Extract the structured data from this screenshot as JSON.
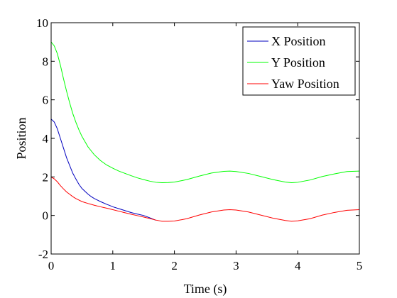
{
  "chart_data": {
    "type": "line",
    "title": "",
    "xlabel": "Time (s)",
    "ylabel": "Position",
    "xlim": [
      0,
      5
    ],
    "ylim": [
      -2,
      10
    ],
    "xticks": [
      0,
      1,
      2,
      3,
      4,
      5
    ],
    "yticks": [
      -2,
      0,
      2,
      4,
      6,
      8,
      10
    ],
    "xtick_labels": [
      "0",
      "1",
      "2",
      "3",
      "4",
      "5"
    ],
    "ytick_labels": [
      "-2",
      "0",
      "2",
      "4",
      "6",
      "8",
      "10"
    ],
    "grid": false,
    "legend_position": "top-right",
    "series": [
      {
        "name": "X Position",
        "color": "#0000bf",
        "x": [
          0,
          0.05,
          0.1,
          0.15,
          0.2,
          0.25,
          0.3,
          0.35,
          0.4,
          0.45,
          0.5,
          0.55,
          0.6,
          0.65,
          0.7,
          0.75,
          0.8,
          0.85,
          0.9,
          0.95,
          1.0,
          1.1,
          1.2,
          1.3,
          1.4,
          1.5,
          1.6,
          1.7
        ],
        "y": [
          5.0,
          4.85,
          4.5,
          4.0,
          3.5,
          3.0,
          2.6,
          2.2,
          1.9,
          1.62,
          1.4,
          1.25,
          1.1,
          0.98,
          0.88,
          0.8,
          0.72,
          0.65,
          0.58,
          0.52,
          0.45,
          0.35,
          0.25,
          0.15,
          0.07,
          0.0,
          -0.12,
          -0.25
        ]
      },
      {
        "name": "Y Position",
        "color": "#00ff00",
        "x": [
          0,
          0.05,
          0.1,
          0.15,
          0.2,
          0.25,
          0.3,
          0.35,
          0.4,
          0.45,
          0.5,
          0.6,
          0.7,
          0.8,
          0.9,
          1.0,
          1.1,
          1.2,
          1.3,
          1.4,
          1.5,
          1.6,
          1.7,
          1.8,
          1.9,
          2.0,
          2.2,
          2.4,
          2.6,
          2.8,
          2.9,
          3.0,
          3.2,
          3.4,
          3.6,
          3.8,
          3.9,
          4.0,
          4.2,
          4.4,
          4.6,
          4.8,
          5.0
        ],
        "y": [
          9.0,
          8.8,
          8.4,
          7.8,
          7.1,
          6.45,
          5.85,
          5.3,
          4.85,
          4.45,
          4.1,
          3.55,
          3.15,
          2.85,
          2.62,
          2.45,
          2.3,
          2.18,
          2.06,
          1.95,
          1.86,
          1.78,
          1.72,
          1.7,
          1.71,
          1.73,
          1.86,
          2.04,
          2.2,
          2.29,
          2.3,
          2.28,
          2.18,
          2.02,
          1.86,
          1.73,
          1.7,
          1.72,
          1.84,
          2.02,
          2.16,
          2.28,
          2.3
        ]
      },
      {
        "name": "Yaw Position",
        "color": "#ff0000",
        "x": [
          0,
          0.05,
          0.1,
          0.15,
          0.2,
          0.25,
          0.3,
          0.35,
          0.4,
          0.45,
          0.5,
          0.6,
          0.7,
          0.8,
          0.9,
          1.0,
          1.1,
          1.2,
          1.3,
          1.4,
          1.5,
          1.6,
          1.7,
          1.8,
          1.9,
          2.0,
          2.2,
          2.4,
          2.6,
          2.8,
          2.9,
          3.0,
          3.2,
          3.4,
          3.6,
          3.8,
          3.9,
          4.0,
          4.2,
          4.4,
          4.6,
          4.8,
          5.0
        ],
        "y": [
          2.0,
          1.9,
          1.75,
          1.55,
          1.38,
          1.22,
          1.1,
          0.98,
          0.88,
          0.8,
          0.72,
          0.62,
          0.53,
          0.45,
          0.38,
          0.3,
          0.22,
          0.14,
          0.06,
          -0.01,
          -0.08,
          -0.16,
          -0.24,
          -0.3,
          -0.3,
          -0.29,
          -0.17,
          0.02,
          0.18,
          0.28,
          0.3,
          0.28,
          0.18,
          0.02,
          -0.14,
          -0.26,
          -0.3,
          -0.28,
          -0.17,
          0.02,
          0.16,
          0.27,
          0.3
        ]
      }
    ]
  }
}
